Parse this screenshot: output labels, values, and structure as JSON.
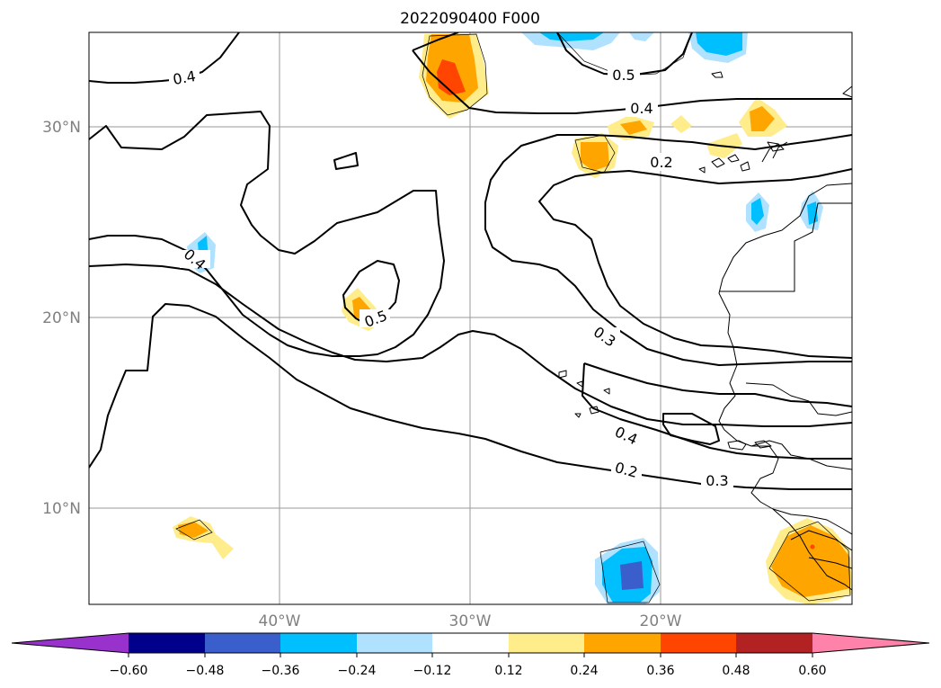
{
  "title": "2022090400 F000",
  "lat_labels": [
    "30°N",
    "20°N",
    "10°N"
  ],
  "lon_labels": [
    "40°W",
    "30°W",
    "20°W"
  ],
  "contour_labels": [
    "0.4",
    "0.5",
    "0.4",
    "0.2",
    "0.4",
    "0.5",
    "0.3",
    "0.4",
    "0.2",
    "0.3"
  ],
  "colorbar": {
    "colors": [
      "#9932cc",
      "#00008b",
      "#3a5fcd",
      "#00bfff",
      "#b0e2ff",
      "#ffffff",
      "#ffec8b",
      "#ffa500",
      "#ff4500",
      "#b22222",
      "#ff82ab"
    ],
    "tick_labels": [
      "−0.60",
      "−0.48",
      "−0.36",
      "−0.24",
      "−0.12",
      "0.12",
      "0.24",
      "0.36",
      "0.48",
      "0.60"
    ]
  }
}
